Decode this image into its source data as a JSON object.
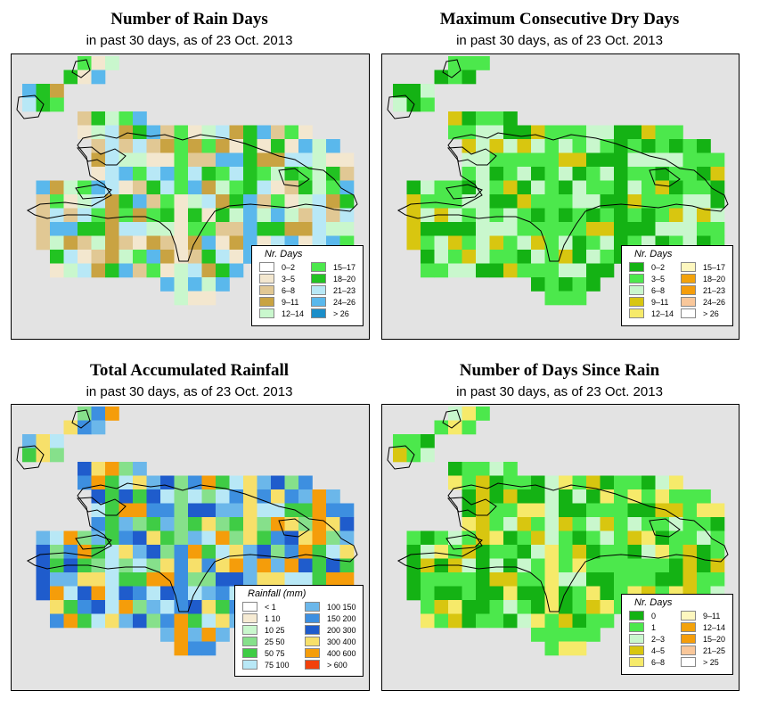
{
  "panels": [
    {
      "title": "Number of Rain Days",
      "subtitle": "in past 30 days, as of  23 Oct. 2013",
      "legend_title": "Nr. Days",
      "legend": [
        {
          "label": "0–2",
          "color": "#ffffff"
        },
        {
          "label": "3–5",
          "color": "#f3e7cf"
        },
        {
          "label": "6–8",
          "color": "#e1c894"
        },
        {
          "label": "9–11",
          "color": "#c9a342"
        },
        {
          "label": "12–14",
          "color": "#c9f7cd"
        },
        {
          "label": "15–17",
          "color": "#4ce84c"
        },
        {
          "label": "18–20",
          "color": "#22c322"
        },
        {
          "label": "21–23",
          "color": "#b8e8f6"
        },
        {
          "label": "24–26",
          "color": "#5ab8ec"
        },
        {
          "label": "> 26",
          "color": "#1b8ec9"
        }
      ]
    },
    {
      "title": "Maximum Consecutive Dry Days",
      "subtitle": "in past 30 days, as of  23 Oct. 2013",
      "legend_title": "Nr. Days",
      "legend": [
        {
          "label": "0–2",
          "color": "#14b214"
        },
        {
          "label": "3–5",
          "color": "#4ce84c"
        },
        {
          "label": "6–8",
          "color": "#c9f7cd"
        },
        {
          "label": "9–11",
          "color": "#d8c610"
        },
        {
          "label": "12–14",
          "color": "#f6ea6a"
        },
        {
          "label": "15–17",
          "color": "#fdf7bf"
        },
        {
          "label": "18–20",
          "color": "#f3a20b"
        },
        {
          "label": "21–23",
          "color": "#f59d0a"
        },
        {
          "label": "24–26",
          "color": "#f9c79a"
        },
        {
          "label": "> 26",
          "color": "#ffffff"
        }
      ]
    },
    {
      "title": "Total Accumulated Rainfall",
      "subtitle": "in past 30 days, as of  23 Oct. 2013",
      "legend_title": "Rainfall (mm)",
      "legend": [
        {
          "label": "< 1",
          "color": "#ffffff"
        },
        {
          "label": "1    10",
          "color": "#f6ebd3"
        },
        {
          "label": "10    25",
          "color": "#c9f7cd"
        },
        {
          "label": "25    50",
          "color": "#86e08b"
        },
        {
          "label": "50    75",
          "color": "#3fcc45"
        },
        {
          "label": "75    100",
          "color": "#b8e8f6"
        },
        {
          "label": "100    150",
          "color": "#6bb7ea"
        },
        {
          "label": "150    200",
          "color": "#3d8fe0"
        },
        {
          "label": "200    300",
          "color": "#1f5ccc"
        },
        {
          "label": "300    400",
          "color": "#f7e06a"
        },
        {
          "label": "400    600",
          "color": "#f59d0a"
        },
        {
          "label": "> 600",
          "color": "#f2410b"
        }
      ]
    },
    {
      "title": "Number of Days Since Rain",
      "subtitle": "in past 30 days, as of  23 Oct. 2013",
      "legend_title": "Nr. Days",
      "legend": [
        {
          "label": "0",
          "color": "#14b214"
        },
        {
          "label": "1",
          "color": "#4ce84c"
        },
        {
          "label": "2–3",
          "color": "#c9f7cd"
        },
        {
          "label": "4–5",
          "color": "#d8c610"
        },
        {
          "label": "6–8",
          "color": "#f6ea6a"
        },
        {
          "label": "9–11",
          "color": "#fdf7bf"
        },
        {
          "label": "12–14",
          "color": "#f3a20b"
        },
        {
          "label": "15–20",
          "color": "#f59d0a"
        },
        {
          "label": "21–25",
          "color": "#f9c79a"
        },
        {
          "label": "> 25",
          "color": "#ffffff"
        }
      ]
    }
  ]
}
